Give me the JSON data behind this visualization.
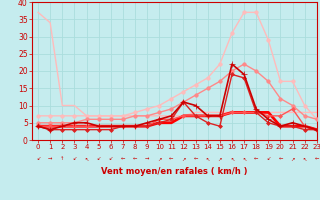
{
  "xlabel": "Vent moyen/en rafales ( km/h )",
  "xlim": [
    -0.5,
    23
  ],
  "ylim": [
    0,
    40
  ],
  "xticks": [
    0,
    1,
    2,
    3,
    4,
    5,
    6,
    7,
    8,
    9,
    10,
    11,
    12,
    13,
    14,
    15,
    16,
    17,
    18,
    19,
    20,
    21,
    22,
    23
  ],
  "yticks": [
    0,
    5,
    10,
    15,
    20,
    25,
    30,
    35,
    40
  ],
  "bg_color": "#c5ecee",
  "grid_color": "#aadddd",
  "series": [
    {
      "comment": "light pink - drops from 37 then gentle slope upward to ~8",
      "y": [
        37,
        34,
        10,
        10,
        7,
        7,
        7,
        7,
        7,
        7,
        7,
        7,
        7,
        8,
        8,
        8,
        8,
        8,
        8,
        8,
        8,
        8,
        8,
        8
      ],
      "color": "#ffbbbb",
      "lw": 1.0,
      "marker": null,
      "zorder": 2
    },
    {
      "comment": "light pink diagonal line from ~7 up to ~37 peak at 17",
      "y": [
        7,
        7,
        7,
        7,
        7,
        7,
        7,
        7,
        8,
        9,
        10,
        12,
        14,
        16,
        18,
        22,
        31,
        37,
        37,
        29,
        17,
        17,
        10,
        6
      ],
      "color": "#ffbbbb",
      "lw": 1.0,
      "marker": "o",
      "markersize": 2.5,
      "zorder": 2
    },
    {
      "comment": "medium pink diagonal line, gradual rise",
      "y": [
        5,
        5,
        5,
        5,
        6,
        6,
        6,
        6,
        7,
        7,
        8,
        9,
        11,
        13,
        15,
        17,
        20,
        22,
        20,
        17,
        12,
        10,
        7,
        6
      ],
      "color": "#ff8888",
      "lw": 1.0,
      "marker": "o",
      "markersize": 2.5,
      "zorder": 3
    },
    {
      "comment": "dark red jagged line with + markers - big spike at 16-17",
      "y": [
        4,
        3,
        4,
        5,
        5,
        4,
        4,
        4,
        4,
        5,
        6,
        7,
        11,
        10,
        7,
        7,
        22,
        19,
        9,
        6,
        4,
        5,
        4,
        3
      ],
      "color": "#cc0000",
      "lw": 1.2,
      "marker": "+",
      "markersize": 4,
      "zorder": 6
    },
    {
      "comment": "dark red with diamond markers",
      "y": [
        4,
        3,
        3,
        3,
        3,
        3,
        3,
        4,
        4,
        4,
        5,
        6,
        11,
        7,
        5,
        4,
        19,
        18,
        8,
        5,
        4,
        4,
        3,
        3
      ],
      "color": "#dd2222",
      "lw": 1.0,
      "marker": "D",
      "markersize": 2,
      "zorder": 5
    },
    {
      "comment": "medium red flat-ish line with dots around 5-8",
      "y": [
        4,
        4,
        4,
        4,
        4,
        4,
        4,
        4,
        4,
        4,
        6,
        6,
        7,
        7,
        7,
        7,
        8,
        8,
        8,
        7,
        7,
        9,
        4,
        3
      ],
      "color": "#ff5555",
      "lw": 1.0,
      "marker": "D",
      "markersize": 2,
      "zorder": 4
    },
    {
      "comment": "thick red mostly flat line around 4-5",
      "y": [
        4,
        4,
        4,
        4,
        4,
        4,
        4,
        4,
        4,
        4,
        5,
        5,
        7,
        7,
        7,
        7,
        8,
        8,
        8,
        8,
        4,
        4,
        4,
        3
      ],
      "color": "#ff0000",
      "lw": 2.0,
      "marker": null,
      "zorder": 3
    }
  ],
  "wind_arrows": [
    "↙",
    "→",
    "↑",
    "↙",
    "↖",
    "↙",
    "↙",
    "←",
    "←",
    "→",
    "↗",
    "←",
    "↗",
    "←",
    "↖",
    "↗",
    "↖",
    "↖",
    "←",
    "↙",
    "←",
    "↗",
    "↖",
    "←"
  ]
}
